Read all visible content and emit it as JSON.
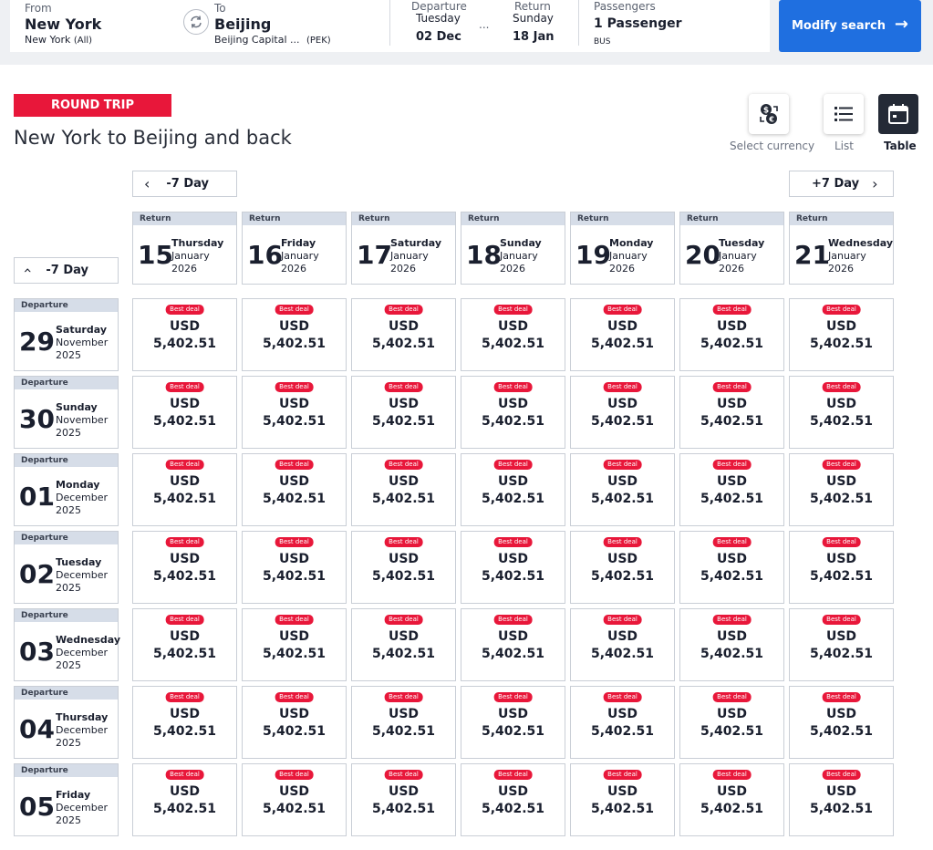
{
  "search": {
    "from_label": "From",
    "from_city": "New York",
    "from_airport": "New York",
    "from_airport_tag": "(All)",
    "to_label": "To",
    "to_city": "Beijing",
    "to_airport": "Beijing Capital ...",
    "to_airport_code": "(PEK)",
    "departure_label": "Departure",
    "departure_weekday": "Tuesday",
    "departure_date": "02 Dec",
    "return_label": "Return",
    "return_weekday": "Sunday",
    "return_date": "18 Jan",
    "date_separator": "...",
    "passengers_label": "Passengers",
    "passengers_value": "1 Passenger",
    "cabin_class": "BUS",
    "modify_button": "Modify search"
  },
  "header": {
    "trip_type": "ROUND TRIP",
    "title": "New York to Beijing and back"
  },
  "views": [
    {
      "label": "Select currency",
      "icon": "currency-exchange-icon",
      "active": false
    },
    {
      "label": "List",
      "icon": "list-icon",
      "active": false
    },
    {
      "label": "Table",
      "icon": "calendar-icon",
      "active": true
    }
  ],
  "nav": {
    "prev_return": "-7 Day",
    "next_return": "+7 Day",
    "prev_departure": "-7 Day"
  },
  "return_header_label": "Return",
  "departure_header_label": "Departure",
  "return_dates": [
    {
      "day": "15",
      "weekday": "Thursday",
      "month": "January",
      "year": "2026"
    },
    {
      "day": "16",
      "weekday": "Friday",
      "month": "January",
      "year": "2026"
    },
    {
      "day": "17",
      "weekday": "Saturday",
      "month": "January",
      "year": "2026"
    },
    {
      "day": "18",
      "weekday": "Sunday",
      "month": "January",
      "year": "2026"
    },
    {
      "day": "19",
      "weekday": "Monday",
      "month": "January",
      "year": "2026"
    },
    {
      "day": "20",
      "weekday": "Tuesday",
      "month": "January",
      "year": "2026"
    },
    {
      "day": "21",
      "weekday": "Wednesday",
      "month": "January",
      "year": "2026"
    }
  ],
  "departure_dates": [
    {
      "day": "29",
      "weekday": "Saturday",
      "month": "November",
      "year": "2025"
    },
    {
      "day": "30",
      "weekday": "Sunday",
      "month": "November",
      "year": "2025"
    },
    {
      "day": "01",
      "weekday": "Monday",
      "month": "December",
      "year": "2025"
    },
    {
      "day": "02",
      "weekday": "Tuesday",
      "month": "December",
      "year": "2025"
    },
    {
      "day": "03",
      "weekday": "Wednesday",
      "month": "December",
      "year": "2025"
    },
    {
      "day": "04",
      "weekday": "Thursday",
      "month": "December",
      "year": "2025"
    },
    {
      "day": "05",
      "weekday": "Friday",
      "month": "December",
      "year": "2025"
    }
  ],
  "fares": [
    [
      {
        "badge": "Best deal",
        "currency": "USD",
        "amount": "5,402.51"
      },
      {
        "badge": "Best deal",
        "currency": "USD",
        "amount": "5,402.51"
      },
      {
        "badge": "Best deal",
        "currency": "USD",
        "amount": "5,402.51"
      },
      {
        "badge": "Best deal",
        "currency": "USD",
        "amount": "5,402.51"
      },
      {
        "badge": "Best deal",
        "currency": "USD",
        "amount": "5,402.51"
      },
      {
        "badge": "Best deal",
        "currency": "USD",
        "amount": "5,402.51"
      },
      {
        "badge": "Best deal",
        "currency": "USD",
        "amount": "5,402.51"
      }
    ],
    [
      {
        "badge": "Best deal",
        "currency": "USD",
        "amount": "5,402.51"
      },
      {
        "badge": "Best deal",
        "currency": "USD",
        "amount": "5,402.51"
      },
      {
        "badge": "Best deal",
        "currency": "USD",
        "amount": "5,402.51"
      },
      {
        "badge": "Best deal",
        "currency": "USD",
        "amount": "5,402.51"
      },
      {
        "badge": "Best deal",
        "currency": "USD",
        "amount": "5,402.51"
      },
      {
        "badge": "Best deal",
        "currency": "USD",
        "amount": "5,402.51"
      },
      {
        "badge": "Best deal",
        "currency": "USD",
        "amount": "5,402.51"
      }
    ],
    [
      {
        "badge": "Best deal",
        "currency": "USD",
        "amount": "5,402.51"
      },
      {
        "badge": "Best deal",
        "currency": "USD",
        "amount": "5,402.51"
      },
      {
        "badge": "Best deal",
        "currency": "USD",
        "amount": "5,402.51"
      },
      {
        "badge": "Best deal",
        "currency": "USD",
        "amount": "5,402.51"
      },
      {
        "badge": "Best deal",
        "currency": "USD",
        "amount": "5,402.51"
      },
      {
        "badge": "Best deal",
        "currency": "USD",
        "amount": "5,402.51"
      },
      {
        "badge": "Best deal",
        "currency": "USD",
        "amount": "5,402.51"
      }
    ],
    [
      {
        "badge": "Best deal",
        "currency": "USD",
        "amount": "5,402.51"
      },
      {
        "badge": "Best deal",
        "currency": "USD",
        "amount": "5,402.51"
      },
      {
        "badge": "Best deal",
        "currency": "USD",
        "amount": "5,402.51"
      },
      {
        "badge": "Best deal",
        "currency": "USD",
        "amount": "5,402.51"
      },
      {
        "badge": "Best deal",
        "currency": "USD",
        "amount": "5,402.51"
      },
      {
        "badge": "Best deal",
        "currency": "USD",
        "amount": "5,402.51"
      },
      {
        "badge": "Best deal",
        "currency": "USD",
        "amount": "5,402.51"
      }
    ],
    [
      {
        "badge": "Best deal",
        "currency": "USD",
        "amount": "5,402.51"
      },
      {
        "badge": "Best deal",
        "currency": "USD",
        "amount": "5,402.51"
      },
      {
        "badge": "Best deal",
        "currency": "USD",
        "amount": "5,402.51"
      },
      {
        "badge": "Best deal",
        "currency": "USD",
        "amount": "5,402.51"
      },
      {
        "badge": "Best deal",
        "currency": "USD",
        "amount": "5,402.51"
      },
      {
        "badge": "Best deal",
        "currency": "USD",
        "amount": "5,402.51"
      },
      {
        "badge": "Best deal",
        "currency": "USD",
        "amount": "5,402.51"
      }
    ],
    [
      {
        "badge": "Best deal",
        "currency": "USD",
        "amount": "5,402.51"
      },
      {
        "badge": "Best deal",
        "currency": "USD",
        "amount": "5,402.51"
      },
      {
        "badge": "Best deal",
        "currency": "USD",
        "amount": "5,402.51"
      },
      {
        "badge": "Best deal",
        "currency": "USD",
        "amount": "5,402.51"
      },
      {
        "badge": "Best deal",
        "currency": "USD",
        "amount": "5,402.51"
      },
      {
        "badge": "Best deal",
        "currency": "USD",
        "amount": "5,402.51"
      },
      {
        "badge": "Best deal",
        "currency": "USD",
        "amount": "5,402.51"
      }
    ],
    [
      {
        "badge": "Best deal",
        "currency": "USD",
        "amount": "5,402.51"
      },
      {
        "badge": "Best deal",
        "currency": "USD",
        "amount": "5,402.51"
      },
      {
        "badge": "Best deal",
        "currency": "USD",
        "amount": "5,402.51"
      },
      {
        "badge": "Best deal",
        "currency": "USD",
        "amount": "5,402.51"
      },
      {
        "badge": "Best deal",
        "currency": "USD",
        "amount": "5,402.51"
      },
      {
        "badge": "Best deal",
        "currency": "USD",
        "amount": "5,402.51"
      },
      {
        "badge": "Best deal",
        "currency": "USD",
        "amount": "5,402.51"
      }
    ]
  ],
  "colors": {
    "accent_red": "#e8173a",
    "primary_blue": "#1f6fe0",
    "header_strip": "#d6dde8",
    "active_view": "#242a36"
  }
}
